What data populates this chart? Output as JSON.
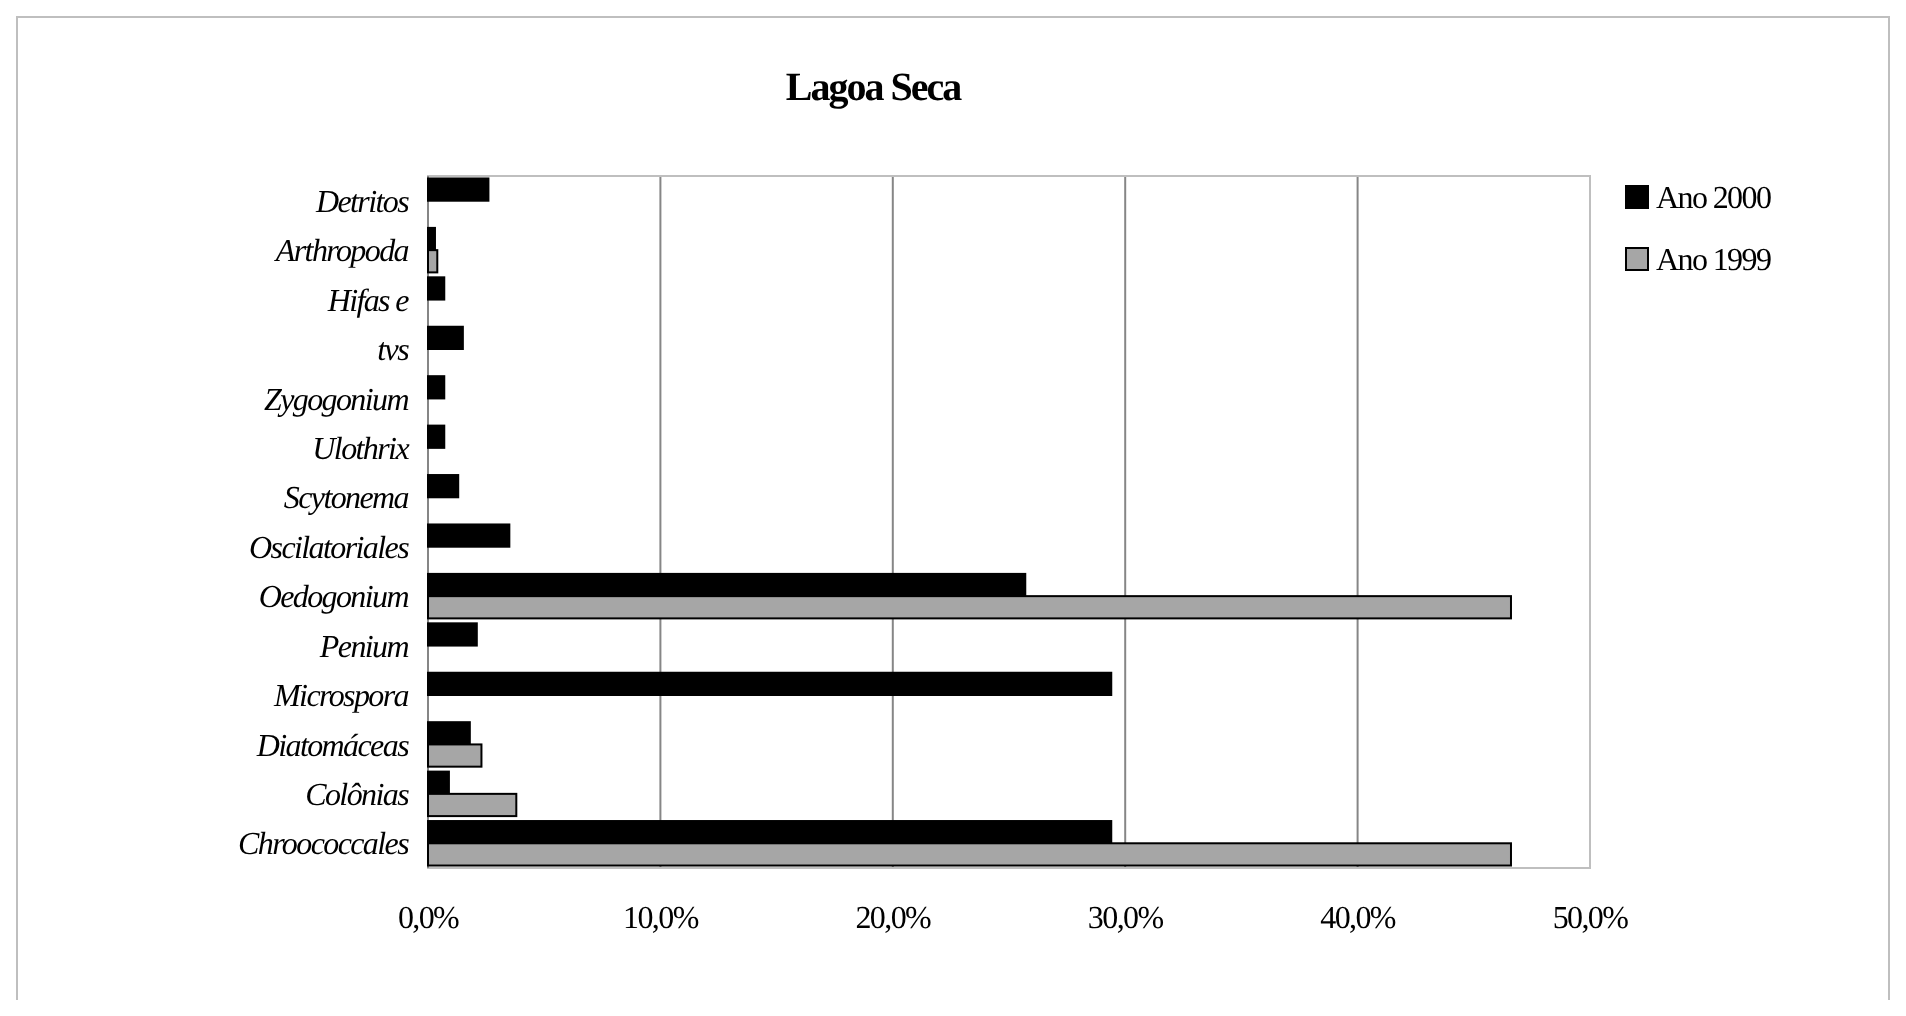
{
  "chart_data": {
    "type": "bar",
    "orientation": "horizontal",
    "title": "Lagoa Seca",
    "categories": [
      "Detritos",
      "Arthropoda",
      "Hifas e",
      "tvs",
      "Zygogonium",
      "Ulothrix",
      "Scytonema",
      "Oscilatoriales",
      "Oedogonium",
      "Penium",
      "Microspora",
      "Diatomáceas",
      "Colônias",
      "Chroococcales"
    ],
    "series": [
      {
        "name": "Ano 2000",
        "color": "#000000",
        "values": [
          2.6,
          0.3,
          0.7,
          1.5,
          0.7,
          0.7,
          1.3,
          3.5,
          25.7,
          2.1,
          29.4,
          1.8,
          0.9,
          29.4
        ]
      },
      {
        "name": "Ano 1999",
        "color": "#a6a6a6",
        "values": [
          0,
          0.4,
          0,
          0,
          0,
          0,
          0,
          0,
          46.6,
          0,
          0,
          2.3,
          3.8,
          46.6
        ]
      }
    ],
    "xlim": [
      0,
      50
    ],
    "xticks": [
      {
        "value": 0,
        "label": "0,0%"
      },
      {
        "value": 10,
        "label": "10,0%"
      },
      {
        "value": 20,
        "label": "20,0%"
      },
      {
        "value": 30,
        "label": "30,0%"
      },
      {
        "value": 40,
        "label": "40,0%"
      },
      {
        "value": 50,
        "label": "50,0%"
      }
    ],
    "grid": "x",
    "legend": "right"
  }
}
